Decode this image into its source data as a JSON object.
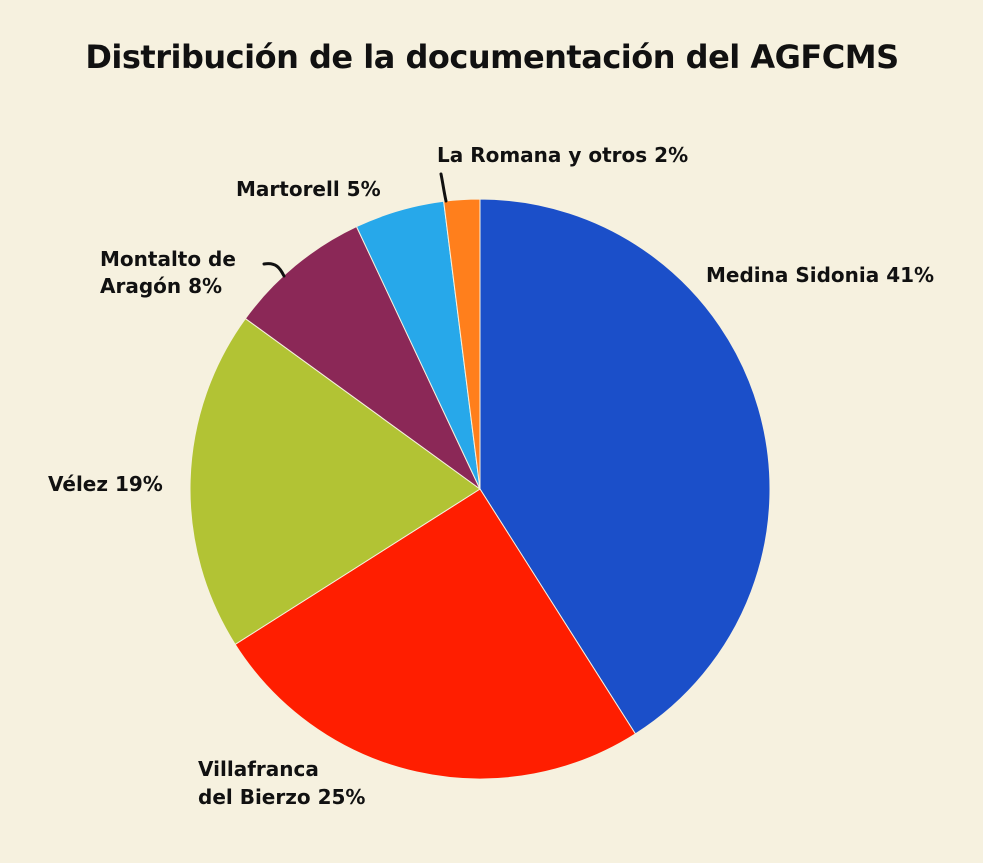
{
  "chart_data": {
    "type": "pie",
    "title": "Distribución de la documentación del AGFCMS",
    "start_angle_deg": 0,
    "direction": "clockwise",
    "slices": [
      {
        "label": "Medina Sidonia 41%",
        "value": 41,
        "color": "#1b4fc9"
      },
      {
        "label": "Villafranca del Bierzo 25%",
        "label_lines": [
          "Villafranca",
          "del Bierzo 25%"
        ],
        "value": 25,
        "color": "#ff1e00"
      },
      {
        "label": "Vélez 19%",
        "value": 19,
        "color": "#b2c334"
      },
      {
        "label": "Montalto de Aragón 8%",
        "label_lines": [
          "Montalto de",
          "Aragón 8%"
        ],
        "value": 8,
        "color": "#8b2857"
      },
      {
        "label": "Martorell 5%",
        "value": 5,
        "color": "#27a8ea"
      },
      {
        "label": "La Romana y otros 2%",
        "value": 2,
        "color": "#ff7f1c"
      }
    ]
  }
}
